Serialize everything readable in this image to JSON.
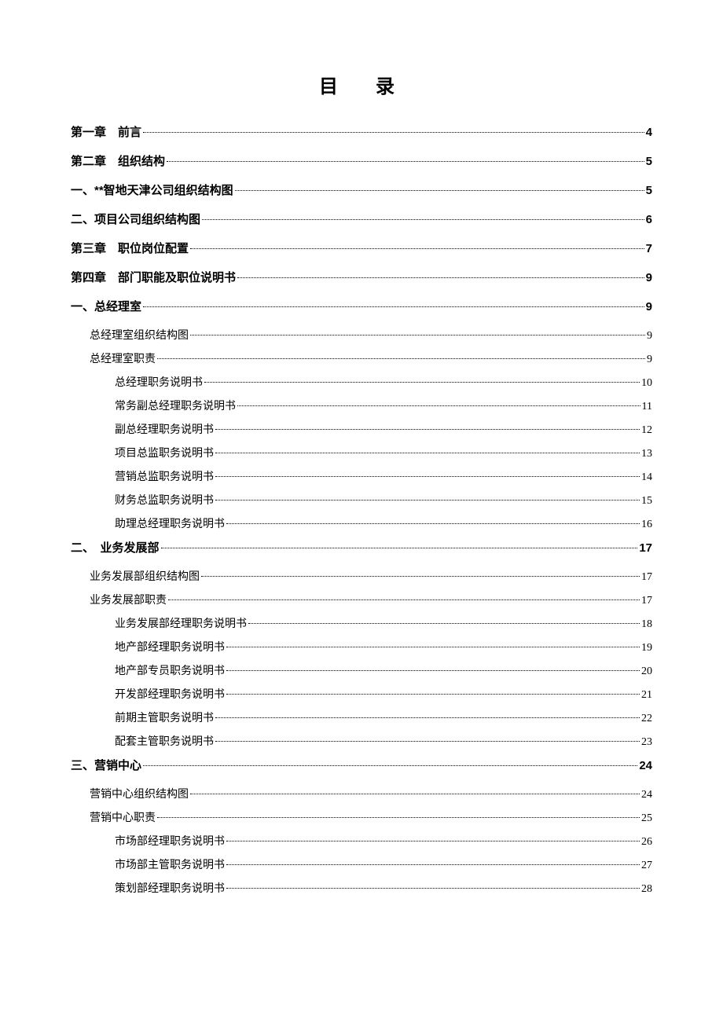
{
  "title": "目　录",
  "entries": [
    {
      "level": 0,
      "label": "第一章　前言",
      "page": "4"
    },
    {
      "level": 0,
      "label": "第二章　组织结构",
      "page": "5"
    },
    {
      "level": 0,
      "label": "一、**智地天津公司组织结构图",
      "page": "5"
    },
    {
      "level": 0,
      "label": "二、项目公司组织结构图",
      "page": "6"
    },
    {
      "level": 0,
      "label": "第三章　职位岗位配置",
      "page": "7"
    },
    {
      "level": 0,
      "label": "第四章　部门职能及职位说明书",
      "page": "9"
    },
    {
      "level": 0,
      "label": "一、总经理室",
      "page": "9"
    },
    {
      "level": 1,
      "label": "总经理室组织结构图",
      "page": "9"
    },
    {
      "level": 1,
      "label": "总经理室职责",
      "page": "9"
    },
    {
      "level": 2,
      "label": "总经理职务说明书",
      "page": "10"
    },
    {
      "level": 2,
      "label": "常务副总经理职务说明书",
      "page": "11"
    },
    {
      "level": 2,
      "label": "副总经理职务说明书",
      "page": "12"
    },
    {
      "level": 2,
      "label": "项目总监职务说明书",
      "page": "13"
    },
    {
      "level": 2,
      "label": "营销总监职务说明书",
      "page": "14"
    },
    {
      "level": 2,
      "label": "财务总监职务说明书",
      "page": "15"
    },
    {
      "level": 2,
      "label": "助理总经理职务说明书",
      "page": "16"
    },
    {
      "level": 0,
      "label": "二、　业务发展部",
      "page": "17"
    },
    {
      "level": 1,
      "label": "业务发展部组织结构图",
      "page": "17"
    },
    {
      "level": 1,
      "label": "业务发展部职责",
      "page": "17"
    },
    {
      "level": 2,
      "label": "业务发展部经理职务说明书",
      "page": "18"
    },
    {
      "level": 2,
      "label": "地产部经理职务说明书",
      "page": "19"
    },
    {
      "level": 2,
      "label": "地产部专员职务说明书",
      "page": "20"
    },
    {
      "level": 2,
      "label": "开发部经理职务说明书",
      "page": "21"
    },
    {
      "level": 2,
      "label": "前期主管职务说明书",
      "page": "22"
    },
    {
      "level": 2,
      "label": "配套主管职务说明书",
      "page": "23"
    },
    {
      "level": 0,
      "label": "三、营销中心",
      "page": "24"
    },
    {
      "level": 1,
      "label": "营销中心组织结构图",
      "page": "24"
    },
    {
      "level": 1,
      "label": "营销中心职责",
      "page": "25"
    },
    {
      "level": 2,
      "label": "市场部经理职务说明书",
      "page": "26"
    },
    {
      "level": 2,
      "label": "市场部主管职务说明书",
      "page": "27"
    },
    {
      "level": 2,
      "label": "策划部经理职务说明书",
      "page": "28"
    }
  ]
}
